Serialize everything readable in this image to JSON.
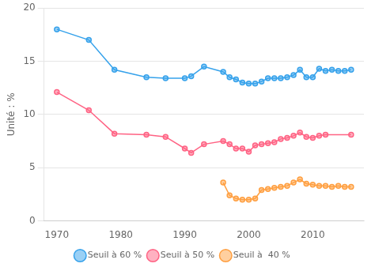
{
  "chart_data": {
    "type": "line",
    "ylabel": "Unité : %",
    "xlim": [
      1968,
      2018
    ],
    "xticks": [
      1970,
      1980,
      1990,
      2000,
      2010
    ],
    "ylim": [
      0,
      20
    ],
    "yticks": [
      0,
      5,
      10,
      15,
      20
    ],
    "grid": true,
    "legend": "bottom",
    "series": [
      {
        "name": "Seuil à 60 %",
        "marker": "circle",
        "x": [
          1970,
          1975,
          1979,
          1984,
          1987,
          1990,
          1991,
          1993,
          1996,
          1997,
          1998,
          1999,
          2000,
          2001,
          2002,
          2003,
          2004,
          2005,
          2006,
          2007,
          2008,
          2009,
          2010,
          2011,
          2012,
          2013,
          2014,
          2015,
          2016
        ],
        "values": [
          18.0,
          17.0,
          14.2,
          13.5,
          13.4,
          13.4,
          13.6,
          14.5,
          14.0,
          13.5,
          13.3,
          13.0,
          12.9,
          12.9,
          13.1,
          13.4,
          13.4,
          13.4,
          13.5,
          13.7,
          14.2,
          13.5,
          13.5,
          14.3,
          14.1,
          14.2,
          14.1,
          14.1,
          14.2
        ]
      },
      {
        "name": "Seuil à 50 %",
        "marker": "circle",
        "x": [
          1970,
          1975,
          1979,
          1984,
          1987,
          1990,
          1991,
          1993,
          1996,
          1997,
          1998,
          1999,
          2000,
          2001,
          2002,
          2003,
          2004,
          2005,
          2006,
          2007,
          2008,
          2009,
          2010,
          2011,
          2012,
          2016
        ],
        "values": [
          12.1,
          10.4,
          8.2,
          8.1,
          7.9,
          6.8,
          6.4,
          7.2,
          7.5,
          7.2,
          6.8,
          6.8,
          6.5,
          7.1,
          7.2,
          7.3,
          7.4,
          7.7,
          7.8,
          8.0,
          8.3,
          7.9,
          7.8,
          8.0,
          8.1,
          8.1
        ]
      },
      {
        "name": "Seuil à  40 %",
        "marker": "circle",
        "x": [
          1996,
          1997,
          1998,
          1999,
          2000,
          2001,
          2002,
          2003,
          2004,
          2005,
          2006,
          2007,
          2008,
          2009,
          2010,
          2011,
          2012,
          2013,
          2014,
          2015,
          2016
        ],
        "values": [
          3.6,
          2.4,
          2.1,
          2.0,
          2.0,
          2.1,
          2.9,
          3.0,
          3.1,
          3.2,
          3.3,
          3.6,
          3.9,
          3.5,
          3.4,
          3.3,
          3.3,
          3.2,
          3.3,
          3.2,
          3.2
        ]
      }
    ]
  }
}
